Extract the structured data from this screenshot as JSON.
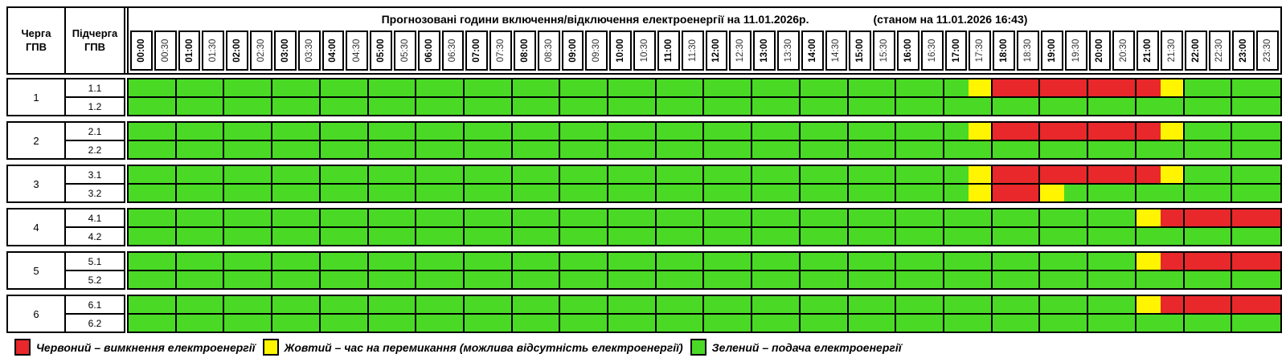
{
  "title": {
    "main": "Прогнозовані години включення/відключення електроенергії на 11.01.2026р.",
    "status": "(станом на 11.01.2026 16:43)"
  },
  "header": {
    "queue_label": "Черга\nГПВ",
    "subqueue_label": "Підчерга\nГПВ"
  },
  "time_labels": [
    "00:00",
    "00:30",
    "01:00",
    "01:30",
    "02:00",
    "02:30",
    "03:00",
    "03:30",
    "04:00",
    "04:30",
    "05:00",
    "05:30",
    "06:00",
    "06:30",
    "07:00",
    "07:30",
    "08:00",
    "08:30",
    "09:00",
    "09:30",
    "10:00",
    "10:30",
    "11:00",
    "11:30",
    "12:00",
    "12:30",
    "13:00",
    "13:30",
    "14:00",
    "14:30",
    "15:00",
    "15:30",
    "16:00",
    "16:30",
    "17:00",
    "17:30",
    "18:00",
    "18:30",
    "19:00",
    "19:30",
    "20:00",
    "20:30",
    "21:00",
    "21:30",
    "22:00",
    "22:30",
    "23:00",
    "23:30"
  ],
  "colors": {
    "G": "#4ADA26",
    "Y": "#FFF500",
    "R": "#E8282B"
  },
  "groups": [
    {
      "queue": "1",
      "rows": [
        {
          "label": "1.1",
          "slots": "GGGGGGGGGGGGGGGGGGGGGGGGGGGGGGGGGGGYRRRRRRRYGGGG"
        },
        {
          "label": "1.2",
          "slots": "GGGGGGGGGGGGGGGGGGGGGGGGGGGGGGGGGGGGGGGGGGGGGGGG"
        }
      ]
    },
    {
      "queue": "2",
      "rows": [
        {
          "label": "2.1",
          "slots": "GGGGGGGGGGGGGGGGGGGGGGGGGGGGGGGGGGGYRRRRRRRYGGGG"
        },
        {
          "label": "2.2",
          "slots": "GGGGGGGGGGGGGGGGGGGGGGGGGGGGGGGGGGGGGGGGGGGGGGGG"
        }
      ]
    },
    {
      "queue": "3",
      "rows": [
        {
          "label": "3.1",
          "slots": "GGGGGGGGGGGGGGGGGGGGGGGGGGGGGGGGGGGYRRRRRRRYGGGG"
        },
        {
          "label": "3.2",
          "slots": "GGGGGGGGGGGGGGGGGGGGGGGGGGGGGGGGGGGYRRYGGGGGGGGG"
        }
      ]
    },
    {
      "queue": "4",
      "rows": [
        {
          "label": "4.1",
          "slots": "GGGGGGGGGGGGGGGGGGGGGGGGGGGGGGGGGGGGGGGGGGYRRRRR"
        },
        {
          "label": "4.2",
          "slots": "GGGGGGGGGGGGGGGGGGGGGGGGGGGGGGGGGGGGGGGGGGGGGGGG"
        }
      ]
    },
    {
      "queue": "5",
      "rows": [
        {
          "label": "5.1",
          "slots": "GGGGGGGGGGGGGGGGGGGGGGGGGGGGGGGGGGGGGGGGGGYRRRRR"
        },
        {
          "label": "5.2",
          "slots": "GGGGGGGGGGGGGGGGGGGGGGGGGGGGGGGGGGGGGGGGGGGGGGGG"
        }
      ]
    },
    {
      "queue": "6",
      "rows": [
        {
          "label": "6.1",
          "slots": "GGGGGGGGGGGGGGGGGGGGGGGGGGGGGGGGGGGGGGGGGGYRRRRR"
        },
        {
          "label": "6.2",
          "slots": "GGGGGGGGGGGGGGGGGGGGGGGGGGGGGGGGGGGGGGGGGGGGGGGG"
        }
      ]
    }
  ],
  "legend": [
    {
      "color": "R",
      "text": "Червоний – вимкнення електроенергії"
    },
    {
      "color": "Y",
      "text": "Жовтий – час на перемикання (можлива відсутність електроенергії)"
    },
    {
      "color": "G",
      "text": "Зелений – подача електроенергії"
    }
  ]
}
